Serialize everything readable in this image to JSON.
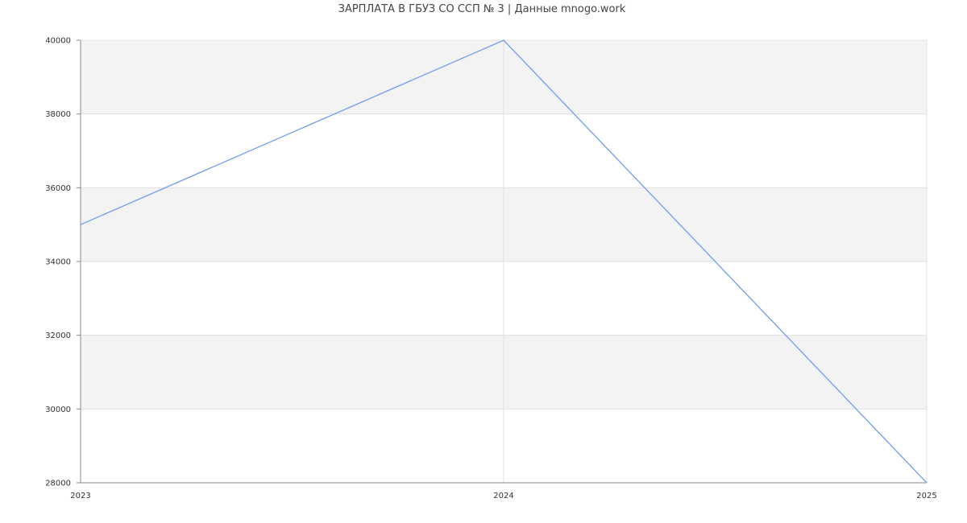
{
  "chart_data": {
    "type": "line",
    "title": "ЗАРПЛАТА В ГБУЗ СО ССП № 3 | Данные mnogo.work",
    "x": [
      "2023",
      "2024",
      "2025"
    ],
    "series": [
      {
        "values": [
          35000,
          40000,
          28000
        ],
        "color": "#6f9cf0"
      }
    ],
    "ylim": [
      28000,
      40000
    ],
    "yticks": [
      "28000",
      "30000",
      "32000",
      "34000",
      "36000",
      "38000",
      "40000"
    ],
    "xlabel": "",
    "ylabel": "",
    "grid": true,
    "band_color": "#f3f3f3",
    "grid_color": "#e0e0e0"
  }
}
